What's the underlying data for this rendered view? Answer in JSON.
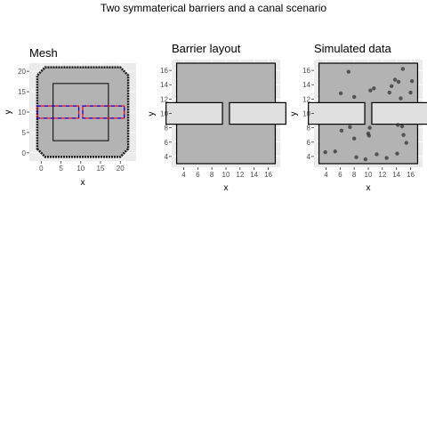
{
  "figure": {
    "title": "Two symmaterical barriers and a canal scenario"
  },
  "colors": {
    "panel_bg": "#ebebeb",
    "grid_line": "#ffffff",
    "mesh_fill": "#b3b3b3",
    "barrier_fill": "#e0e0e0",
    "point_color": "#333333",
    "barrier_outline_red": "#ff0000",
    "barrier_outline_blue": "#0000ff"
  },
  "chart_data": [
    {
      "type": "mesh",
      "title": "Mesh",
      "xlabel": "x",
      "ylabel": "y",
      "xlim": [
        -3,
        24
      ],
      "ylim": [
        -2,
        22
      ],
      "xticks": [
        0,
        5,
        10,
        15,
        20
      ],
      "yticks": [
        0,
        5,
        10,
        15,
        20
      ],
      "outer_boundary": [
        [
          -1,
          1
        ],
        [
          1,
          -1
        ],
        [
          20,
          -1
        ],
        [
          22,
          1
        ],
        [
          22,
          19
        ],
        [
          20,
          21
        ],
        [
          1,
          21
        ],
        [
          -1,
          19
        ]
      ],
      "inner_square": [
        [
          3,
          3
        ],
        [
          17,
          3
        ],
        [
          17,
          17
        ],
        [
          3,
          17
        ]
      ],
      "barriers": [
        {
          "xmin": -1,
          "xmax": 9.5,
          "ymin": 8.5,
          "ymax": 11.5
        },
        {
          "xmin": 10.5,
          "xmax": 21,
          "ymin": 8.5,
          "ymax": 11.5
        }
      ]
    },
    {
      "type": "layout",
      "title": "Barrier layout",
      "xlabel": "x",
      "ylabel": "y",
      "xlim": [
        2.3,
        17.7
      ],
      "ylim": [
        2.5,
        17.5
      ],
      "xticks": [
        4,
        6,
        8,
        10,
        12,
        14,
        16
      ],
      "yticks": [
        4,
        6,
        8,
        10,
        12,
        14,
        16
      ],
      "domain": {
        "xmin": 3,
        "xmax": 17,
        "ymin": 3,
        "ymax": 17
      },
      "barriers": [
        {
          "xmin": 1.5,
          "xmax": 9.5,
          "ymin": 8.5,
          "ymax": 11.5
        },
        {
          "xmin": 10.5,
          "xmax": 18.5,
          "ymin": 8.5,
          "ymax": 11.5
        }
      ]
    },
    {
      "type": "scatter",
      "title": "Simulated data",
      "xlabel": "x",
      "ylabel": "y",
      "xlim": [
        2.3,
        17.7
      ],
      "ylim": [
        2.5,
        17.5
      ],
      "xticks": [
        4,
        6,
        8,
        10,
        12,
        14,
        16
      ],
      "yticks": [
        4,
        6,
        8,
        10,
        12,
        14,
        16
      ],
      "domain": {
        "xmin": 3,
        "xmax": 17,
        "ymin": 3,
        "ymax": 17
      },
      "barriers": [
        {
          "xmin": 1.5,
          "xmax": 9.5,
          "ymin": 8.5,
          "ymax": 11.5
        },
        {
          "xmin": 10.5,
          "xmax": 18.5,
          "ymin": 8.5,
          "ymax": 11.5
        }
      ],
      "points": [
        [
          7.2,
          15.8
        ],
        [
          6.1,
          12.8
        ],
        [
          8.0,
          12.3
        ],
        [
          10.3,
          13.2
        ],
        [
          10.8,
          13.5
        ],
        [
          13.0,
          12.9
        ],
        [
          13.8,
          14.7
        ],
        [
          14.3,
          14.4
        ],
        [
          14.9,
          16.2
        ],
        [
          14.6,
          12.1
        ],
        [
          13.3,
          13.8
        ],
        [
          16.2,
          14.5
        ],
        [
          16.0,
          12.9
        ],
        [
          7.4,
          8.1
        ],
        [
          6.2,
          7.6
        ],
        [
          8.0,
          6.5
        ],
        [
          10.0,
          7.2
        ],
        [
          10.2,
          8.0
        ],
        [
          10.1,
          6.9
        ],
        [
          14.2,
          8.4
        ],
        [
          14.8,
          8.2
        ],
        [
          15.0,
          7.0
        ],
        [
          15.4,
          5.9
        ],
        [
          3.9,
          4.6
        ],
        [
          5.3,
          4.7
        ],
        [
          8.3,
          3.9
        ],
        [
          9.6,
          3.6
        ],
        [
          11.2,
          4.3
        ],
        [
          12.6,
          3.8
        ],
        [
          14.1,
          4.4
        ]
      ]
    }
  ]
}
